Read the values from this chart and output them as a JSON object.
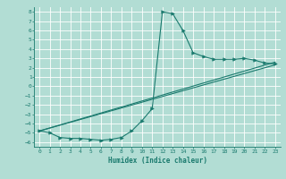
{
  "xlabel": "Humidex (Indice chaleur)",
  "xlim": [
    -0.5,
    23.5
  ],
  "ylim": [
    -6.5,
    8.5
  ],
  "xticks": [
    0,
    1,
    2,
    3,
    4,
    5,
    6,
    7,
    8,
    9,
    10,
    11,
    12,
    13,
    14,
    15,
    16,
    17,
    18,
    19,
    20,
    21,
    22,
    23
  ],
  "yticks": [
    8,
    7,
    6,
    5,
    4,
    3,
    2,
    1,
    0,
    -1,
    -2,
    -3,
    -4,
    -5,
    -6
  ],
  "bg_color": "#b2ddd4",
  "line_color": "#1a7a6e",
  "grid_color": "#ffffff",
  "line1_x": [
    0,
    1,
    2,
    3,
    4,
    5,
    6,
    7,
    8,
    9,
    10,
    11,
    12,
    13,
    14,
    15,
    16,
    17,
    18,
    19,
    20,
    21,
    22,
    23
  ],
  "line1_y": [
    -4.8,
    -5.0,
    -5.5,
    -5.6,
    -5.6,
    -5.7,
    -5.8,
    -5.7,
    -5.5,
    -4.8,
    -3.7,
    -2.4,
    8.0,
    7.8,
    6.0,
    3.6,
    3.2,
    2.9,
    2.9,
    2.9,
    3.0,
    2.8,
    2.5,
    2.4
  ],
  "line2_x": [
    0,
    23
  ],
  "line2_y": [
    -4.8,
    2.6
  ],
  "line3_x": [
    0,
    23
  ],
  "line3_y": [
    -4.8,
    2.3
  ],
  "tick_fontsize": 4.5,
  "xlabel_fontsize": 5.5
}
